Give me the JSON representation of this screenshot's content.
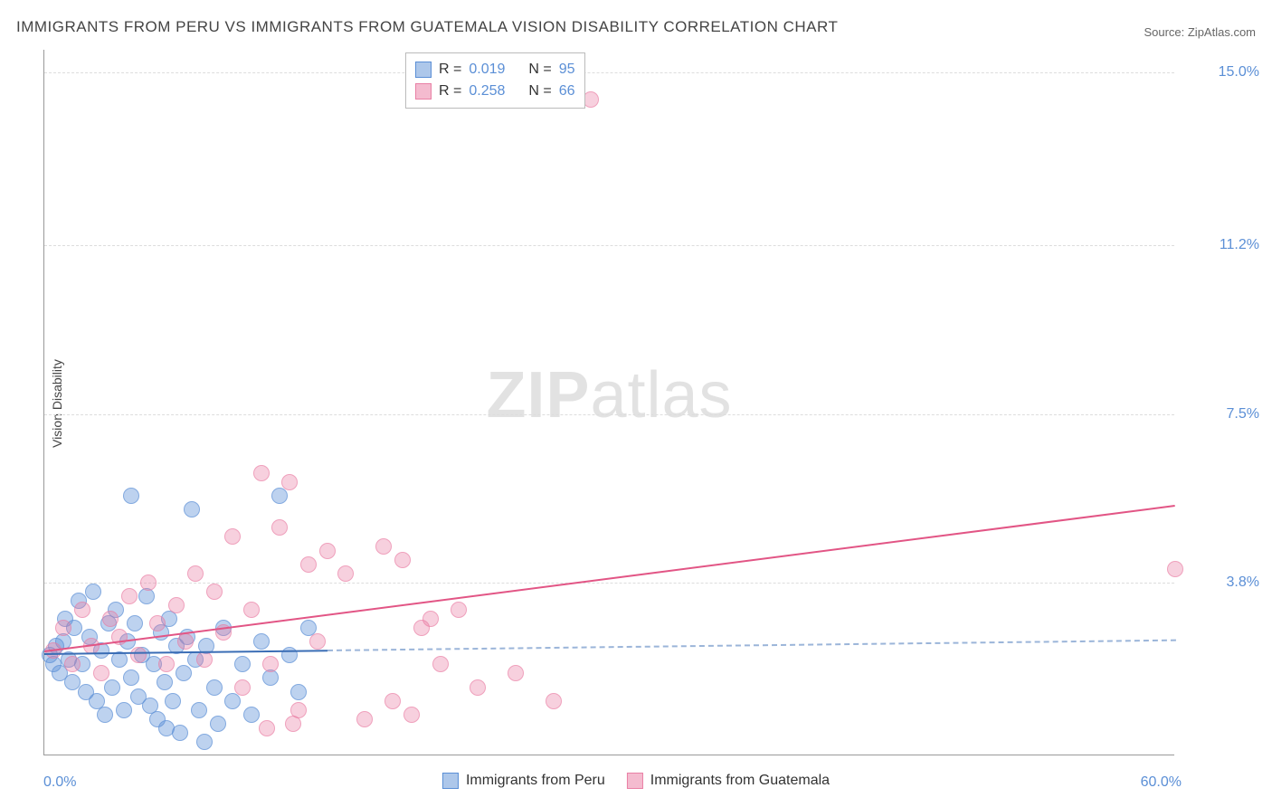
{
  "chart": {
    "type": "scatter",
    "title": "IMMIGRANTS FROM PERU VS IMMIGRANTS FROM GUATEMALA VISION DISABILITY CORRELATION CHART",
    "source_label": "Source: ZipAtlas.com",
    "y_axis_label": "Vision Disability",
    "watermark": "ZIPatlas",
    "background_color": "#ffffff",
    "grid_color": "#dddddd",
    "axis_color": "#999999",
    "tick_label_color": "#5b8fd6",
    "title_color": "#444444",
    "title_fontsize": 17,
    "label_fontsize": 14,
    "tick_fontsize": 16,
    "xlim": [
      0,
      60
    ],
    "ylim": [
      0,
      15.5
    ],
    "x_ticks": [
      {
        "value": 0,
        "label": "0.0%"
      },
      {
        "value": 60,
        "label": "60.0%"
      }
    ],
    "y_ticks": [
      {
        "value": 3.8,
        "label": "3.8%"
      },
      {
        "value": 7.5,
        "label": "7.5%"
      },
      {
        "value": 11.2,
        "label": "11.2%"
      },
      {
        "value": 15.0,
        "label": "15.0%"
      }
    ],
    "series": [
      {
        "name": "Immigrants from Peru",
        "color_fill": "rgba(91,143,214,0.4)",
        "color_stroke": "#5b8fd6",
        "trend_color": "#3a6db5",
        "correlation": {
          "R_label": "R =",
          "R": "0.019",
          "N_label": "N =",
          "N": "95"
        },
        "trend": {
          "x1": 0,
          "y1": 2.25,
          "x2_solid": 15,
          "x2": 60,
          "y2": 2.55
        },
        "marker_size": 18,
        "points": [
          [
            0.3,
            2.2
          ],
          [
            0.5,
            2.0
          ],
          [
            0.6,
            2.4
          ],
          [
            0.8,
            1.8
          ],
          [
            1.0,
            2.5
          ],
          [
            1.1,
            3.0
          ],
          [
            1.3,
            2.1
          ],
          [
            1.5,
            1.6
          ],
          [
            1.6,
            2.8
          ],
          [
            1.8,
            3.4
          ],
          [
            2.0,
            2.0
          ],
          [
            2.2,
            1.4
          ],
          [
            2.4,
            2.6
          ],
          [
            2.6,
            3.6
          ],
          [
            2.8,
            1.2
          ],
          [
            3.0,
            2.3
          ],
          [
            3.2,
            0.9
          ],
          [
            3.4,
            2.9
          ],
          [
            3.6,
            1.5
          ],
          [
            3.8,
            3.2
          ],
          [
            4.0,
            2.1
          ],
          [
            4.2,
            1.0
          ],
          [
            4.4,
            2.5
          ],
          [
            4.6,
            1.7
          ],
          [
            4.6,
            5.7
          ],
          [
            4.8,
            2.9
          ],
          [
            5.0,
            1.3
          ],
          [
            5.2,
            2.2
          ],
          [
            5.4,
            3.5
          ],
          [
            5.6,
            1.1
          ],
          [
            5.8,
            2.0
          ],
          [
            6.0,
            0.8
          ],
          [
            6.2,
            2.7
          ],
          [
            6.4,
            1.6
          ],
          [
            6.6,
            3.0
          ],
          [
            6.8,
            1.2
          ],
          [
            7.0,
            2.4
          ],
          [
            7.2,
            0.5
          ],
          [
            7.4,
            1.8
          ],
          [
            7.6,
            2.6
          ],
          [
            7.8,
            5.4
          ],
          [
            8.0,
            2.1
          ],
          [
            8.2,
            1.0
          ],
          [
            8.6,
            2.4
          ],
          [
            9.0,
            1.5
          ],
          [
            9.5,
            2.8
          ],
          [
            10.0,
            1.2
          ],
          [
            10.5,
            2.0
          ],
          [
            11.0,
            0.9
          ],
          [
            11.5,
            2.5
          ],
          [
            12.0,
            1.7
          ],
          [
            12.5,
            5.7
          ],
          [
            13.0,
            2.2
          ],
          [
            13.5,
            1.4
          ],
          [
            14.0,
            2.8
          ],
          [
            8.5,
            0.3
          ],
          [
            9.2,
            0.7
          ],
          [
            6.5,
            0.6
          ]
        ]
      },
      {
        "name": "Immigrants from Guatemala",
        "color_fill": "rgba(233,120,160,0.35)",
        "color_stroke": "#e980a5",
        "trend_color": "#e25585",
        "correlation": {
          "R_label": "R =",
          "R": "0.258",
          "N_label": "N =",
          "N": "66"
        },
        "trend": {
          "x1": 0,
          "y1": 2.3,
          "x2_solid": 60,
          "x2": 60,
          "y2": 5.5
        },
        "marker_size": 18,
        "points": [
          [
            0.5,
            2.3
          ],
          [
            1.0,
            2.8
          ],
          [
            1.5,
            2.0
          ],
          [
            2.0,
            3.2
          ],
          [
            2.5,
            2.4
          ],
          [
            3.0,
            1.8
          ],
          [
            3.5,
            3.0
          ],
          [
            4.0,
            2.6
          ],
          [
            4.5,
            3.5
          ],
          [
            5.0,
            2.2
          ],
          [
            5.5,
            3.8
          ],
          [
            6.0,
            2.9
          ],
          [
            6.5,
            2.0
          ],
          [
            7.0,
            3.3
          ],
          [
            7.5,
            2.5
          ],
          [
            8.0,
            4.0
          ],
          [
            8.5,
            2.1
          ],
          [
            9.0,
            3.6
          ],
          [
            9.5,
            2.7
          ],
          [
            10.0,
            4.8
          ],
          [
            10.5,
            1.5
          ],
          [
            11.0,
            3.2
          ],
          [
            11.5,
            6.2
          ],
          [
            12.0,
            2.0
          ],
          [
            12.5,
            5.0
          ],
          [
            13.0,
            6.0
          ],
          [
            13.5,
            1.0
          ],
          [
            14.0,
            4.2
          ],
          [
            14.5,
            2.5
          ],
          [
            15.0,
            4.5
          ],
          [
            16.0,
            4.0
          ],
          [
            17.0,
            0.8
          ],
          [
            18.0,
            4.6
          ],
          [
            18.5,
            1.2
          ],
          [
            19.0,
            4.3
          ],
          [
            19.5,
            0.9
          ],
          [
            20.0,
            2.8
          ],
          [
            20.5,
            3.0
          ],
          [
            21.0,
            2.0
          ],
          [
            22.0,
            3.2
          ],
          [
            23.0,
            1.5
          ],
          [
            25.0,
            1.8
          ],
          [
            27.0,
            1.2
          ],
          [
            29.0,
            14.4
          ],
          [
            60.0,
            4.1
          ],
          [
            11.8,
            0.6
          ],
          [
            13.2,
            0.7
          ]
        ]
      }
    ],
    "bottom_legend": [
      {
        "swatch": "s1",
        "label": "Immigrants from Peru"
      },
      {
        "swatch": "s2",
        "label": "Immigrants from Guatemala"
      }
    ]
  }
}
